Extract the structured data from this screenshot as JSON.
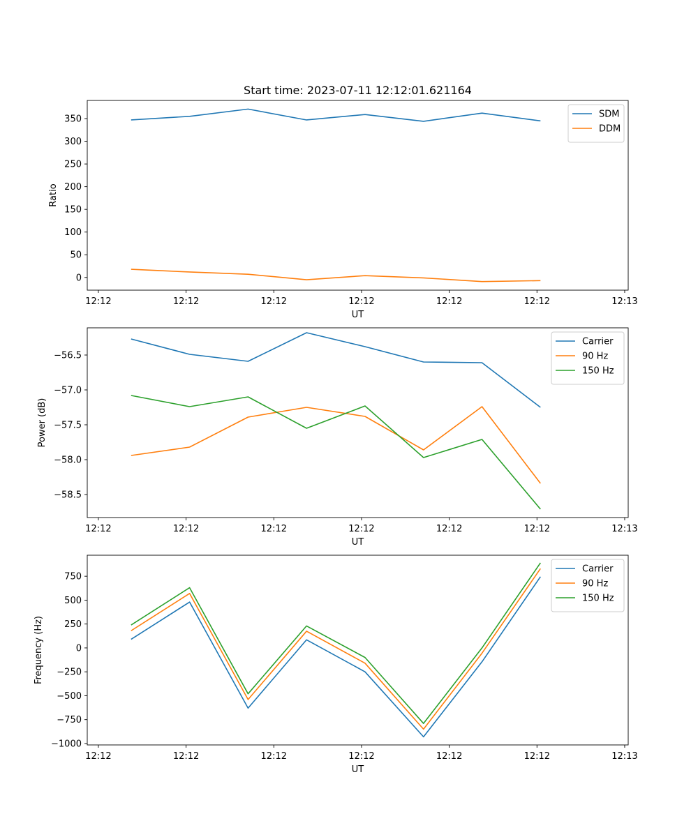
{
  "chart_data": [
    {
      "type": "line",
      "title": "Start time: 2023-07-11 12:12:01.621164",
      "xlabel": "UT",
      "ylabel": "Ratio",
      "x_index": [
        0,
        1,
        2,
        3,
        4,
        5,
        6,
        7
      ],
      "xlim": [
        -0.75,
        8.5
      ],
      "x_ticks": [
        -0.56,
        0.94,
        2.44,
        3.94,
        5.44,
        6.94,
        8.44
      ],
      "x_tick_labels": [
        "12:12",
        "12:12",
        "12:12",
        "12:12",
        "12:12",
        "12:12",
        "12:13"
      ],
      "ylim": [
        -28,
        390
      ],
      "y_ticks": [
        0,
        50,
        100,
        150,
        200,
        250,
        300,
        350
      ],
      "y_tick_labels": [
        "0",
        "50",
        "100",
        "150",
        "200",
        "250",
        "300",
        "350"
      ],
      "legend_position": "top-right",
      "series": [
        {
          "name": "SDM",
          "color": "#1f77b4",
          "values": [
            347,
            355,
            371,
            347,
            359,
            344,
            362,
            345
          ]
        },
        {
          "name": "DDM",
          "color": "#ff7f0e",
          "values": [
            18,
            12,
            7,
            -5,
            4,
            -1,
            -9,
            -7
          ]
        }
      ]
    },
    {
      "type": "line",
      "title": "",
      "xlabel": "UT",
      "ylabel": "Power (dB)",
      "x_index": [
        0,
        1,
        2,
        3,
        4,
        5,
        6,
        7
      ],
      "xlim": [
        -0.75,
        8.5
      ],
      "x_ticks": [
        -0.56,
        0.94,
        2.44,
        3.94,
        5.44,
        6.94,
        8.44
      ],
      "x_tick_labels": [
        "12:12",
        "12:12",
        "12:12",
        "12:12",
        "12:12",
        "12:12",
        "12:13"
      ],
      "ylim": [
        -58.83,
        -56.11
      ],
      "y_ticks": [
        -56.5,
        -57.0,
        -57.5,
        -58.0,
        -58.5
      ],
      "y_tick_labels": [
        "−56.5",
        "−57.0",
        "−57.5",
        "−58.0",
        "−58.5"
      ],
      "legend_position": "top-right",
      "series": [
        {
          "name": "Carrier",
          "color": "#1f77b4",
          "values": [
            -56.27,
            -56.49,
            -56.59,
            -56.18,
            -56.38,
            -56.6,
            -56.61,
            -57.25
          ]
        },
        {
          "name": "90 Hz",
          "color": "#ff7f0e",
          "values": [
            -57.94,
            -57.82,
            -57.39,
            -57.25,
            -57.38,
            -57.86,
            -57.24,
            -58.34
          ]
        },
        {
          "name": "150 Hz",
          "color": "#2ca02c",
          "values": [
            -57.08,
            -57.24,
            -57.1,
            -57.55,
            -57.23,
            -57.97,
            -57.71,
            -58.71
          ]
        }
      ]
    },
    {
      "type": "line",
      "title": "",
      "xlabel": "UT",
      "ylabel": "Frequency (Hz)",
      "x_index": [
        0,
        1,
        2,
        3,
        4,
        5,
        6,
        7
      ],
      "xlim": [
        -0.75,
        8.5
      ],
      "x_ticks": [
        -0.56,
        0.94,
        2.44,
        3.94,
        5.44,
        6.94,
        8.44
      ],
      "x_tick_labels": [
        "12:12",
        "12:12",
        "12:12",
        "12:12",
        "12:12",
        "12:12",
        "12:13"
      ],
      "ylim": [
        -1015,
        970
      ],
      "y_ticks": [
        750,
        500,
        250,
        0,
        -250,
        -500,
        -750,
        -1000
      ],
      "y_tick_labels": [
        "750",
        "500",
        "250",
        "0",
        "−250",
        "−500",
        "−750",
        "−1000"
      ],
      "legend_position": "top-right",
      "series": [
        {
          "name": "Carrier",
          "color": "#1f77b4",
          "values": [
            90,
            480,
            -630,
            85,
            -250,
            -930,
            -145,
            745
          ]
        },
        {
          "name": "90 Hz",
          "color": "#ff7f0e",
          "values": [
            180,
            570,
            -540,
            175,
            -160,
            -850,
            -55,
            830
          ]
        },
        {
          "name": "150 Hz",
          "color": "#2ca02c",
          "values": [
            240,
            630,
            -480,
            230,
            -100,
            -790,
            0,
            890
          ]
        }
      ]
    }
  ]
}
